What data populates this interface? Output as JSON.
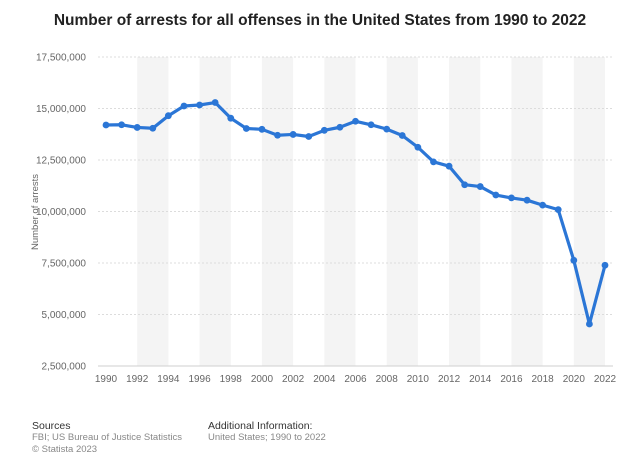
{
  "title": "Number of arrests for all offenses in the United States from 1990 to 2022",
  "chart_data": {
    "type": "line",
    "title": "Number of arrests for all offenses in the United States from 1990 to 2022",
    "xlabel": "",
    "ylabel": "Number of arrests",
    "x": [
      1990,
      1991,
      1992,
      1993,
      1994,
      1995,
      1996,
      1997,
      1998,
      1999,
      2000,
      2001,
      2002,
      2003,
      2004,
      2005,
      2006,
      2007,
      2008,
      2009,
      2010,
      2011,
      2012,
      2013,
      2014,
      2015,
      2016,
      2017,
      2018,
      2019,
      2020,
      2021,
      2022
    ],
    "values": [
      14200000,
      14210000,
      14080000,
      14040000,
      14650000,
      15120000,
      15170000,
      15290000,
      14530000,
      14030000,
      13990000,
      13700000,
      13740000,
      13640000,
      13940000,
      14090000,
      14380000,
      14210000,
      14000000,
      13690000,
      13120000,
      12410000,
      12200000,
      11300000,
      11210000,
      10800000,
      10660000,
      10550000,
      10310000,
      10090000,
      7630000,
      4540000,
      7390000
    ],
    "ylim": [
      2500000,
      17500000
    ],
    "yticks": [
      2500000,
      5000000,
      7500000,
      10000000,
      12500000,
      15000000,
      17500000
    ],
    "ytick_labels": [
      "2,500,000",
      "5,000,000",
      "7,500,000",
      "10,000,000",
      "12,500,000",
      "15,000,000",
      "17,500,000"
    ],
    "xticks": [
      1990,
      1992,
      1994,
      1996,
      1998,
      2000,
      2002,
      2004,
      2006,
      2008,
      2010,
      2012,
      2014,
      2016,
      2018,
      2020,
      2022
    ],
    "line_color": "#2b76d6",
    "band_color": "#f4f4f4",
    "grid_color": "#dcdcdc"
  },
  "footer": {
    "sources_heading": "Sources",
    "sources_text": "FBI; US Bureau of Justice Statistics",
    "copyright": "© Statista 2023",
    "info_heading": "Additional Information:",
    "info_text": "United States; 1990 to 2022"
  }
}
